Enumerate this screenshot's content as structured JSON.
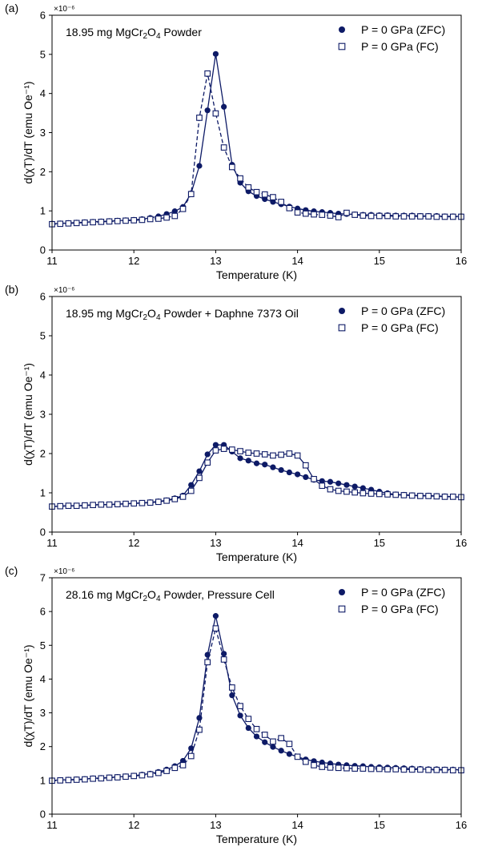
{
  "chart_data": [
    {
      "type": "line",
      "panel_label": "(a)",
      "annotation": {
        "pre": "18.95 mg MgCr",
        "sub1": "2",
        "mid": "O",
        "sub2": "4",
        "post": " Powder"
      },
      "xlabel": "Temperature (K)",
      "ylabel": "d(χT)/dT (emu Oe⁻¹)",
      "y_multiplier": "×10⁻⁶",
      "xlim": [
        11,
        16
      ],
      "ylim": [
        0,
        6
      ],
      "xticks": [
        11,
        12,
        13,
        14,
        15,
        16
      ],
      "yticks": [
        0,
        1,
        2,
        3,
        4,
        5,
        6
      ],
      "legend_position": "top-right",
      "colors": {
        "series": "#0d1a66"
      },
      "series": [
        {
          "name": "P = 0 GPa (ZFC)",
          "marker": "filled-circle",
          "line": "solid",
          "x": [
            11.0,
            11.1,
            11.2,
            11.3,
            11.4,
            11.5,
            11.6,
            11.7,
            11.8,
            11.9,
            12.0,
            12.1,
            12.2,
            12.3,
            12.4,
            12.5,
            12.6,
            12.7,
            12.8,
            12.9,
            13.0,
            13.1,
            13.2,
            13.3,
            13.4,
            13.5,
            13.6,
            13.7,
            13.8,
            13.9,
            14.0,
            14.1,
            14.2,
            14.3,
            14.4,
            14.5,
            14.6,
            14.7,
            14.8,
            14.9,
            15.0,
            15.1,
            15.2,
            15.3,
            15.4,
            15.5,
            15.6,
            15.7,
            15.8,
            15.9,
            16.0
          ],
          "y": [
            0.67,
            0.68,
            0.69,
            0.7,
            0.71,
            0.72,
            0.73,
            0.74,
            0.75,
            0.76,
            0.77,
            0.79,
            0.82,
            0.86,
            0.92,
            0.99,
            1.1,
            1.45,
            2.15,
            3.57,
            5.01,
            3.66,
            2.18,
            1.72,
            1.5,
            1.38,
            1.3,
            1.23,
            1.17,
            1.11,
            1.06,
            1.02,
            0.99,
            0.97,
            0.95,
            0.93,
            0.92,
            0.91,
            0.9,
            0.9,
            0.89,
            0.89,
            0.88,
            0.88,
            0.88,
            0.87,
            0.87,
            0.87,
            0.86,
            0.86,
            0.86
          ]
        },
        {
          "name": "P = 0 GPa (FC)",
          "marker": "open-square",
          "line": "dashed",
          "x": [
            11.0,
            11.1,
            11.2,
            11.3,
            11.4,
            11.5,
            11.6,
            11.7,
            11.8,
            11.9,
            12.0,
            12.1,
            12.2,
            12.3,
            12.4,
            12.5,
            12.6,
            12.7,
            12.8,
            12.9,
            13.0,
            13.1,
            13.2,
            13.3,
            13.4,
            13.5,
            13.6,
            13.7,
            13.8,
            13.9,
            14.0,
            14.1,
            14.2,
            14.3,
            14.4,
            14.5,
            14.6,
            14.7,
            14.8,
            14.9,
            15.0,
            15.1,
            15.2,
            15.3,
            15.4,
            15.5,
            15.6,
            15.7,
            15.8,
            15.9,
            16.0
          ],
          "y": [
            0.66,
            0.67,
            0.68,
            0.69,
            0.7,
            0.71,
            0.72,
            0.73,
            0.74,
            0.75,
            0.76,
            0.77,
            0.79,
            0.8,
            0.83,
            0.87,
            1.05,
            1.43,
            3.38,
            4.51,
            3.49,
            2.62,
            2.12,
            1.83,
            1.6,
            1.48,
            1.42,
            1.35,
            1.23,
            1.07,
            0.96,
            0.93,
            0.91,
            0.9,
            0.88,
            0.84,
            0.95,
            0.9,
            0.88,
            0.87,
            0.87,
            0.87,
            0.86,
            0.86,
            0.86,
            0.86,
            0.86,
            0.85,
            0.85,
            0.85,
            0.85
          ]
        }
      ]
    },
    {
      "type": "line",
      "panel_label": "(b)",
      "annotation": {
        "pre": "18.95 mg MgCr",
        "sub1": "2",
        "mid": "O",
        "sub2": "4",
        "post": " Powder + Daphne 7373 Oil"
      },
      "xlabel": "Temperature (K)",
      "ylabel": "d(χT)/dT (emu Oe⁻¹)",
      "y_multiplier": "×10⁻⁶",
      "xlim": [
        11,
        16
      ],
      "ylim": [
        0,
        6
      ],
      "xticks": [
        11,
        12,
        13,
        14,
        15,
        16
      ],
      "yticks": [
        0,
        1,
        2,
        3,
        4,
        5,
        6
      ],
      "legend_position": "top-right",
      "colors": {
        "series": "#0d1a66"
      },
      "series": [
        {
          "name": "P = 0 GPa (ZFC)",
          "marker": "filled-circle",
          "line": "solid",
          "x": [
            11.0,
            11.1,
            11.2,
            11.3,
            11.4,
            11.5,
            11.6,
            11.7,
            11.8,
            11.9,
            12.0,
            12.1,
            12.2,
            12.3,
            12.4,
            12.5,
            12.6,
            12.7,
            12.8,
            12.9,
            13.0,
            13.1,
            13.2,
            13.3,
            13.4,
            13.5,
            13.6,
            13.7,
            13.8,
            13.9,
            14.0,
            14.1,
            14.2,
            14.3,
            14.4,
            14.5,
            14.6,
            14.7,
            14.8,
            14.9,
            15.0,
            15.1,
            15.2,
            15.3,
            15.4,
            15.5,
            15.6,
            15.7,
            15.8,
            15.9,
            16.0
          ],
          "y": [
            0.65,
            0.66,
            0.67,
            0.67,
            0.68,
            0.69,
            0.7,
            0.7,
            0.71,
            0.72,
            0.73,
            0.74,
            0.76,
            0.78,
            0.81,
            0.86,
            0.93,
            1.2,
            1.55,
            1.98,
            2.22,
            2.22,
            2.05,
            1.88,
            1.82,
            1.75,
            1.72,
            1.65,
            1.58,
            1.52,
            1.47,
            1.4,
            1.33,
            1.3,
            1.28,
            1.24,
            1.2,
            1.16,
            1.12,
            1.08,
            1.03,
            0.99,
            0.96,
            0.95,
            0.94,
            0.93,
            0.93,
            0.92,
            0.91,
            0.9,
            0.89
          ]
        },
        {
          "name": "P = 0 GPa (FC)",
          "marker": "open-square",
          "line": "solid",
          "x": [
            11.0,
            11.1,
            11.2,
            11.3,
            11.4,
            11.5,
            11.6,
            11.7,
            11.8,
            11.9,
            12.0,
            12.1,
            12.2,
            12.3,
            12.4,
            12.5,
            12.6,
            12.7,
            12.8,
            12.9,
            13.0,
            13.1,
            13.2,
            13.3,
            13.4,
            13.5,
            13.6,
            13.7,
            13.8,
            13.9,
            14.0,
            14.1,
            14.2,
            14.3,
            14.4,
            14.5,
            14.6,
            14.7,
            14.8,
            14.9,
            15.0,
            15.1,
            15.2,
            15.3,
            15.4,
            15.5,
            15.6,
            15.7,
            15.8,
            15.9,
            16.0
          ],
          "y": [
            0.65,
            0.66,
            0.67,
            0.67,
            0.68,
            0.69,
            0.7,
            0.7,
            0.71,
            0.72,
            0.73,
            0.74,
            0.75,
            0.77,
            0.8,
            0.84,
            0.9,
            1.05,
            1.38,
            1.77,
            2.08,
            2.12,
            2.1,
            2.06,
            2.02,
            2.0,
            1.98,
            1.95,
            1.97,
            2.0,
            1.95,
            1.7,
            1.35,
            1.18,
            1.09,
            1.05,
            1.03,
            1.01,
            0.99,
            0.98,
            0.97,
            0.96,
            0.95,
            0.94,
            0.93,
            0.92,
            0.92,
            0.91,
            0.9,
            0.9,
            0.89
          ]
        }
      ]
    },
    {
      "type": "line",
      "panel_label": "(c)",
      "annotation": {
        "pre": "28.16 mg MgCr",
        "sub1": "2",
        "mid": "O",
        "sub2": "4",
        "post": " Powder, Pressure Cell"
      },
      "xlabel": "Temperature (K)",
      "ylabel": "d(χT)/dT (emu Oe⁻¹)",
      "y_multiplier": "×10⁻⁶",
      "xlim": [
        11,
        16
      ],
      "ylim": [
        0,
        7
      ],
      "xticks": [
        11,
        12,
        13,
        14,
        15,
        16
      ],
      "yticks": [
        0,
        1,
        2,
        3,
        4,
        5,
        6,
        7
      ],
      "legend_position": "top-right",
      "colors": {
        "series": "#0d1a66"
      },
      "series": [
        {
          "name": "P = 0 GPa (ZFC)",
          "marker": "filled-circle",
          "line": "solid",
          "x": [
            11.0,
            11.1,
            11.2,
            11.3,
            11.4,
            11.5,
            11.6,
            11.7,
            11.8,
            11.9,
            12.0,
            12.1,
            12.2,
            12.3,
            12.4,
            12.5,
            12.6,
            12.7,
            12.8,
            12.9,
            13.0,
            13.1,
            13.2,
            13.3,
            13.4,
            13.5,
            13.6,
            13.7,
            13.8,
            13.9,
            14.0,
            14.1,
            14.2,
            14.3,
            14.4,
            14.5,
            14.6,
            14.7,
            14.8,
            14.9,
            15.0,
            15.1,
            15.2,
            15.3,
            15.4,
            15.5,
            15.6,
            15.7,
            15.8,
            15.9,
            16.0
          ],
          "y": [
            1.0,
            1.01,
            1.02,
            1.03,
            1.04,
            1.06,
            1.07,
            1.09,
            1.1,
            1.12,
            1.14,
            1.17,
            1.2,
            1.25,
            1.32,
            1.42,
            1.58,
            1.95,
            2.85,
            4.72,
            5.87,
            4.75,
            3.52,
            2.92,
            2.55,
            2.3,
            2.13,
            1.99,
            1.88,
            1.78,
            1.7,
            1.62,
            1.57,
            1.53,
            1.5,
            1.47,
            1.45,
            1.43,
            1.42,
            1.4,
            1.39,
            1.38,
            1.37,
            1.36,
            1.35,
            1.34,
            1.33,
            1.33,
            1.32,
            1.32,
            1.31
          ]
        },
        {
          "name": "P = 0 GPa (FC)",
          "marker": "open-square",
          "line": "dashed",
          "x": [
            11.0,
            11.1,
            11.2,
            11.3,
            11.4,
            11.5,
            11.6,
            11.7,
            11.8,
            11.9,
            12.0,
            12.1,
            12.2,
            12.3,
            12.4,
            12.5,
            12.6,
            12.7,
            12.8,
            12.9,
            13.0,
            13.1,
            13.2,
            13.3,
            13.4,
            13.5,
            13.6,
            13.7,
            13.8,
            13.9,
            14.0,
            14.1,
            14.2,
            14.3,
            14.4,
            14.5,
            14.6,
            14.7,
            14.8,
            14.9,
            15.0,
            15.1,
            15.2,
            15.3,
            15.4,
            15.5,
            15.6,
            15.7,
            15.8,
            15.9,
            16.0
          ],
          "y": [
            0.99,
            1.0,
            1.01,
            1.02,
            1.03,
            1.05,
            1.06,
            1.08,
            1.09,
            1.11,
            1.13,
            1.15,
            1.18,
            1.22,
            1.28,
            1.37,
            1.45,
            1.72,
            2.5,
            4.5,
            5.5,
            4.58,
            3.75,
            3.2,
            2.82,
            2.52,
            2.35,
            2.15,
            2.25,
            2.08,
            1.7,
            1.55,
            1.45,
            1.4,
            1.38,
            1.37,
            1.36,
            1.35,
            1.35,
            1.34,
            1.34,
            1.33,
            1.33,
            1.32,
            1.32,
            1.32,
            1.31,
            1.31,
            1.31,
            1.3,
            1.3
          ]
        }
      ]
    }
  ]
}
